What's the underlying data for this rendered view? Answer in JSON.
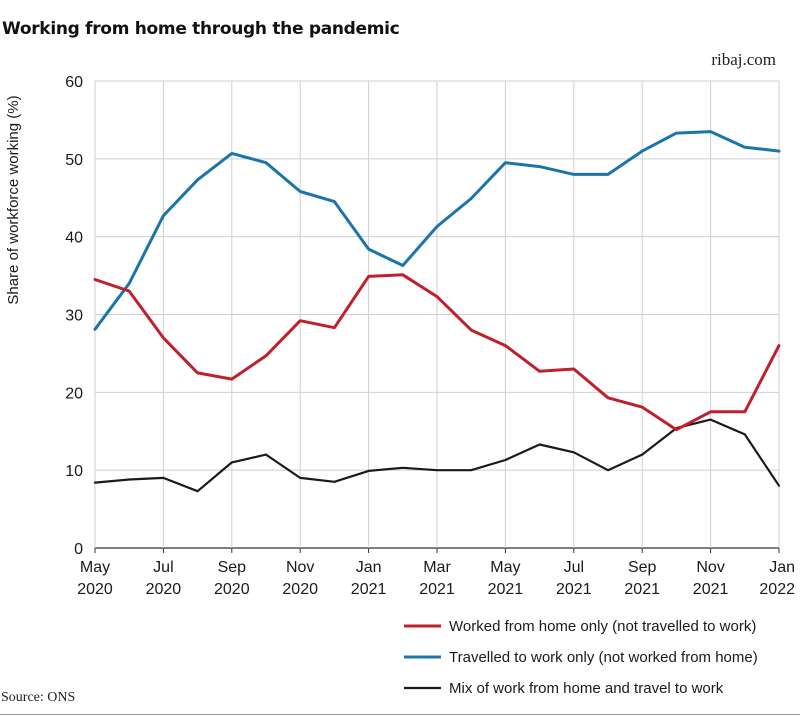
{
  "header": {
    "title": "Working from home through the pandemic",
    "credit": "ribaj.com"
  },
  "footer": {
    "source": "Source: ONS"
  },
  "chart_data": {
    "type": "line",
    "title": "Working from home through the pandemic",
    "ylabel": "Share of workforce working (%)",
    "xlabel": "",
    "ylim": [
      0,
      60
    ],
    "yticks": [
      0,
      10,
      20,
      30,
      40,
      50,
      60
    ],
    "grid": true,
    "legend_position": "bottom-right",
    "x": [
      "May 2020",
      "Jun 2020",
      "Jul 2020",
      "Aug 2020",
      "Sep 2020",
      "Oct 2020",
      "Nov 2020",
      "Dec 2020",
      "Jan 2021",
      "Feb 2021",
      "Mar 2021",
      "Apr 2021",
      "May 2021",
      "Jun 2021",
      "Jul 2021",
      "Aug 2021",
      "Sep 2021",
      "Oct 2021",
      "Nov 2021",
      "Dec 2021",
      "Jan 2022"
    ],
    "xtick_labels": [
      {
        "month": "May",
        "year": "2020",
        "index": 0
      },
      {
        "month": "Jul",
        "year": "2020",
        "index": 2
      },
      {
        "month": "Sep",
        "year": "2020",
        "index": 4
      },
      {
        "month": "Nov",
        "year": "2020",
        "index": 6
      },
      {
        "month": "Jan",
        "year": "2021",
        "index": 8
      },
      {
        "month": "Mar",
        "year": "2021",
        "index": 10
      },
      {
        "month": "May",
        "year": "2021",
        "index": 12
      },
      {
        "month": "Jul",
        "year": "2021",
        "index": 14
      },
      {
        "month": "Sep",
        "year": "2021",
        "index": 16
      },
      {
        "month": "Nov",
        "year": "2021",
        "index": 18
      },
      {
        "month": "Jan",
        "year": "2022",
        "index": 20
      }
    ],
    "series": [
      {
        "name": "Worked from home only (not travelled to work)",
        "color": "#c0202b",
        "values": [
          34.5,
          33.0,
          27.0,
          22.5,
          21.7,
          24.7,
          29.2,
          28.3,
          34.9,
          35.1,
          32.3,
          28.0,
          26.0,
          22.7,
          23.0,
          19.3,
          18.1,
          15.2,
          17.5,
          17.5,
          26.0
        ]
      },
      {
        "name": "Travelled to work only (not worked from home)",
        "color": "#1b75a8",
        "values": [
          28.1,
          34.0,
          42.7,
          47.3,
          50.7,
          49.5,
          45.8,
          44.5,
          38.4,
          36.3,
          41.3,
          44.9,
          49.5,
          49.0,
          48.0,
          48.0,
          51.0,
          53.3,
          53.5,
          51.5,
          51.0
        ]
      },
      {
        "name": "Mix of work from home and travel to work",
        "color": "#1a1a1a",
        "values": [
          8.4,
          8.8,
          9.0,
          7.3,
          11.0,
          12.0,
          9.0,
          8.5,
          9.9,
          10.3,
          10.0,
          10.0,
          11.3,
          13.3,
          12.3,
          10.0,
          12.0,
          15.4,
          16.5,
          14.6,
          8.0
        ]
      }
    ]
  }
}
